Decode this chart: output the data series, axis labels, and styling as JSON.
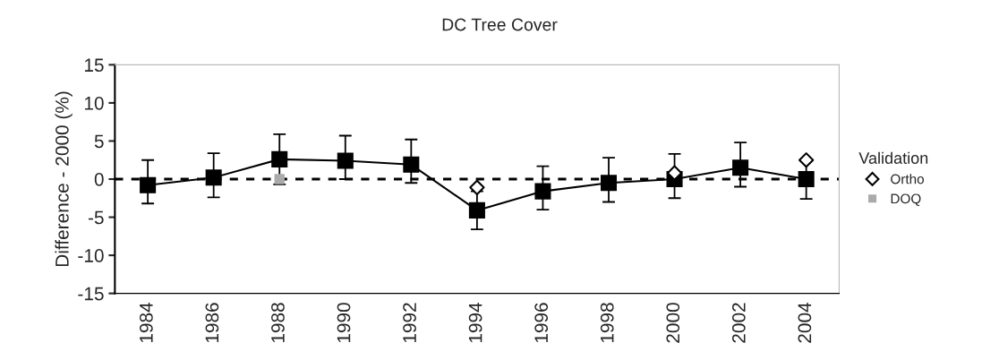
{
  "chart_data": {
    "type": "line",
    "title": "DC Tree Cover",
    "ylabel": "Difference - 2000 (%)",
    "legend_title": "Validation",
    "categories": [
      "1984",
      "1986",
      "1988",
      "1990",
      "1992",
      "1994",
      "1996",
      "1998",
      "2000",
      "2002",
      "2004"
    ],
    "series": [
      {
        "color": "#000000",
        "marker": "square",
        "values": [
          -0.8,
          0.2,
          2.6,
          2.4,
          1.9,
          -4.1,
          -1.6,
          -0.5,
          0,
          1.5,
          0
        ],
        "errors": [
          [
            -3.2,
            2.5
          ],
          [
            -2.4,
            3.4
          ],
          [
            -0.7,
            5.9
          ],
          [
            0,
            5.7
          ],
          [
            -0.5,
            5.2
          ],
          [
            -6.6,
            -1.6
          ],
          [
            -4.0,
            1.7
          ],
          [
            -3.0,
            2.8
          ],
          [
            -2.5,
            3.3
          ],
          [
            -1.0,
            4.8
          ],
          [
            -2.6,
            2.6
          ]
        ]
      },
      {
        "type": "scatter",
        "name": "Ortho",
        "color": "#000000",
        "marker": "diamond",
        "values": [
          null,
          null,
          null,
          null,
          null,
          -1.1,
          null,
          null,
          0.8,
          null,
          2.5
        ]
      },
      {
        "type": "scatter",
        "name": "DOQ",
        "color": "#aaaaaa",
        "marker": "square",
        "values": [
          null,
          null,
          0,
          null,
          null,
          null,
          null,
          null,
          null,
          null,
          null
        ]
      }
    ],
    "ylim": [
      -15,
      15
    ],
    "yticks": [
      -15,
      -10,
      -5,
      0,
      5,
      10,
      15
    ],
    "ref_lines": [
      {
        "axis": "y",
        "value": 0,
        "color": "#000000",
        "line_style": "dashed"
      }
    ],
    "grid": false,
    "legend": "right"
  }
}
